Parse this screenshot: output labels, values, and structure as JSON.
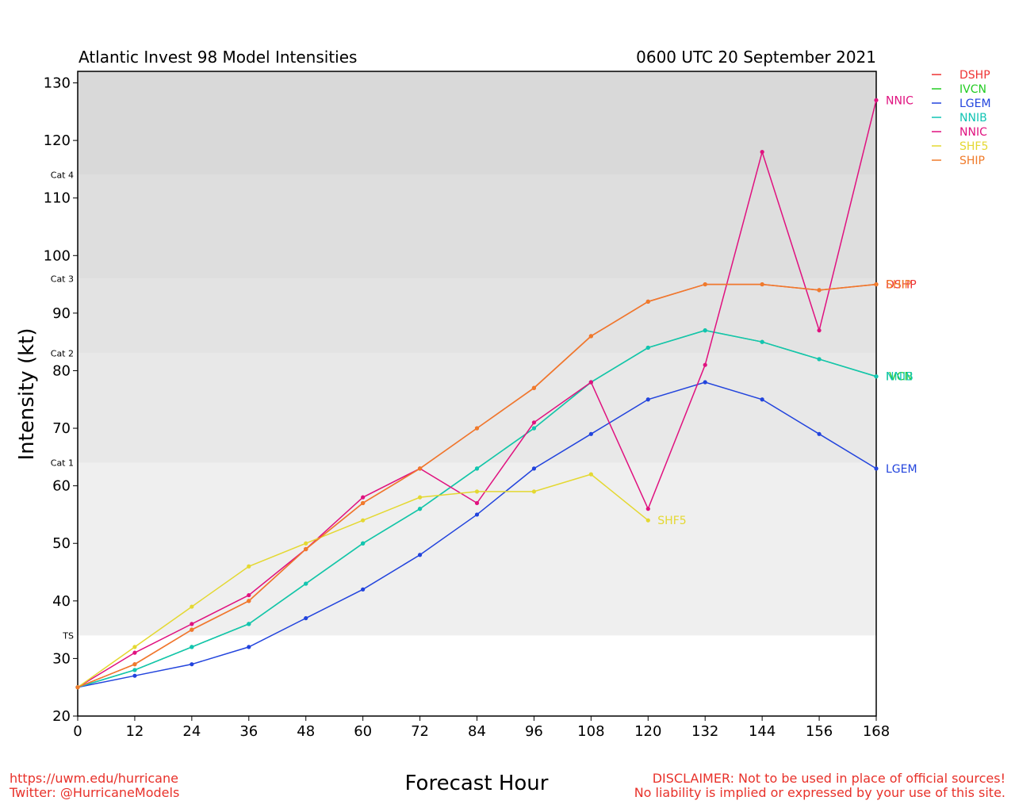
{
  "chart_data": {
    "type": "line",
    "title": "Atlantic Invest 98 Model Intensities",
    "subtitle": "0600 UTC 20 September 2021",
    "xlabel": "Forecast Hour",
    "ylabel": "Intensity (kt)",
    "xlim": [
      0,
      168
    ],
    "ylim": [
      20,
      132
    ],
    "x_ticks": [
      0,
      12,
      24,
      36,
      48,
      60,
      72,
      84,
      96,
      108,
      120,
      132,
      144,
      156,
      168
    ],
    "y_ticks": [
      20,
      30,
      40,
      50,
      60,
      70,
      80,
      90,
      100,
      110,
      120,
      130
    ],
    "grid": false,
    "legend_position": "right, outside plot",
    "categories": [
      {
        "name": "TS",
        "min": 34,
        "max": 64,
        "color": "#efefef"
      },
      {
        "name": "Cat 1",
        "min": 64,
        "max": 83,
        "color": "#e8e8e8"
      },
      {
        "name": "Cat 2",
        "min": 83,
        "max": 96,
        "color": "#e3e3e3"
      },
      {
        "name": "Cat 3",
        "min": 96,
        "max": 114,
        "color": "#dedede"
      },
      {
        "name": "Cat 4",
        "min": 114,
        "max": 132,
        "color": "#d9d9d9"
      }
    ],
    "series": [
      {
        "name": "DSHP",
        "color": "#ee3333",
        "x": [
          0,
          12,
          24,
          36,
          48,
          60,
          72,
          84,
          96,
          108,
          120,
          132,
          144,
          156,
          168
        ],
        "values": [
          25,
          29,
          35,
          40,
          49,
          57,
          63,
          70,
          77,
          86,
          92,
          95,
          95,
          94,
          95
        ]
      },
      {
        "name": "IVCN",
        "color": "#22cc22",
        "x": [
          0,
          12,
          24,
          36,
          48,
          60,
          72,
          84,
          96,
          108,
          120,
          132,
          144,
          156,
          168
        ],
        "values": [
          25,
          28,
          32,
          36,
          43,
          50,
          56,
          63,
          70,
          78,
          84,
          87,
          85,
          82,
          79
        ]
      },
      {
        "name": "LGEM",
        "color": "#2244dd",
        "x": [
          0,
          12,
          24,
          36,
          48,
          60,
          72,
          84,
          96,
          108,
          120,
          132,
          144,
          156,
          168
        ],
        "values": [
          25,
          27,
          29,
          32,
          37,
          42,
          48,
          55,
          63,
          69,
          75,
          78,
          75,
          69,
          63
        ]
      },
      {
        "name": "NNIB",
        "color": "#11c4b4",
        "x": [
          0,
          12,
          24,
          36,
          48,
          60,
          72,
          84,
          96,
          108,
          120,
          132,
          144,
          156,
          168
        ],
        "values": [
          25,
          28,
          32,
          36,
          43,
          50,
          56,
          63,
          70,
          78,
          84,
          87,
          85,
          82,
          79
        ]
      },
      {
        "name": "NNIC",
        "color": "#e0117f",
        "x": [
          0,
          12,
          24,
          36,
          48,
          60,
          72,
          84,
          96,
          108,
          120,
          132,
          144,
          156,
          168
        ],
        "values": [
          25,
          31,
          36,
          41,
          49,
          58,
          63,
          57,
          71,
          78,
          56,
          81,
          118,
          87,
          127
        ]
      },
      {
        "name": "SHF5",
        "color": "#e4d831",
        "x": [
          0,
          12,
          24,
          36,
          48,
          60,
          72,
          84,
          96,
          108,
          120
        ],
        "values": [
          25,
          32,
          39,
          46,
          50,
          54,
          58,
          59,
          59,
          62,
          54
        ]
      },
      {
        "name": "SHIP",
        "color": "#f07b2a",
        "x": [
          0,
          12,
          24,
          36,
          48,
          60,
          72,
          84,
          96,
          108,
          120,
          132,
          144,
          156,
          168
        ],
        "values": [
          25,
          29,
          35,
          40,
          49,
          57,
          63,
          70,
          77,
          86,
          92,
          95,
          95,
          94,
          95
        ]
      }
    ]
  },
  "footer": {
    "left_line1": "https://uwm.edu/hurricane",
    "left_line2": "Twitter: @HurricaneModels",
    "right_line1": "DISCLAIMER: Not to be used in place of official sources!",
    "right_line2": "No liability is implied or expressed by your use of this site."
  }
}
